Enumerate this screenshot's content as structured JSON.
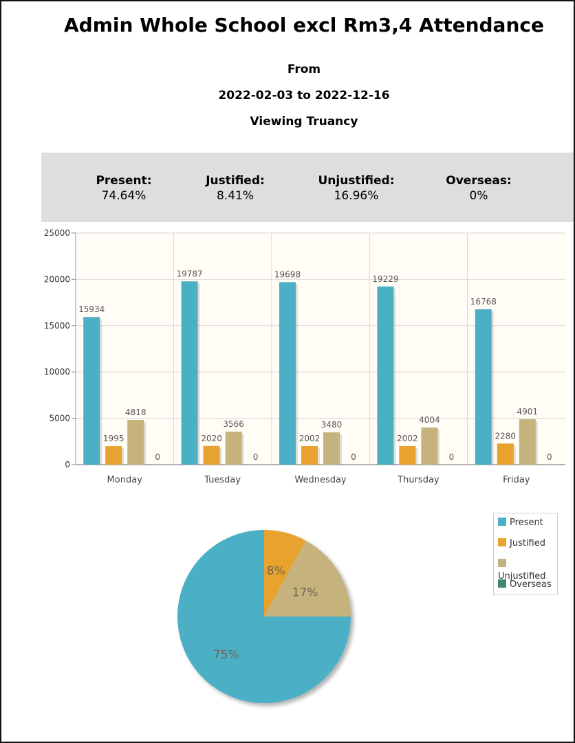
{
  "header": {
    "title": "Admin Whole School excl Rm3,4 Attendance",
    "from_label": "From",
    "date_range": "2022-02-03 to 2022-12-16",
    "view_label": "Viewing Truancy"
  },
  "summary": [
    {
      "label": "Present:",
      "value": "74.64%"
    },
    {
      "label": "Justified:",
      "value": "8.41%"
    },
    {
      "label": "Unjustified:",
      "value": "16.96%"
    },
    {
      "label": "Overseas:",
      "value": "0%"
    }
  ],
  "colors": {
    "present": "#4bb0c6",
    "justified": "#e8a22f",
    "unjustified": "#c6b27c",
    "overseas": "#3f8a6a",
    "plot_bg": "#fffdf5",
    "grid": "#d8d8d8"
  },
  "chart_data": [
    {
      "type": "bar",
      "categories": [
        "Monday",
        "Tuesday",
        "Wednesday",
        "Thursday",
        "Friday"
      ],
      "series": [
        {
          "name": "Present",
          "values": [
            15934,
            19787,
            19698,
            19229,
            16768
          ]
        },
        {
          "name": "Justified",
          "values": [
            1995,
            2020,
            2002,
            2002,
            2280
          ]
        },
        {
          "name": "Unjustified",
          "values": [
            4818,
            3566,
            3480,
            4004,
            4901
          ]
        },
        {
          "name": "Overseas",
          "values": [
            0,
            0,
            0,
            0,
            0
          ]
        }
      ],
      "ylim": [
        0,
        25000
      ],
      "yticks": [
        0,
        5000,
        10000,
        15000,
        20000,
        25000
      ],
      "grid": true
    },
    {
      "type": "pie",
      "slices": [
        {
          "name": "Present",
          "value": 75,
          "label": "75%"
        },
        {
          "name": "Justified",
          "value": 8,
          "label": "8%"
        },
        {
          "name": "Unjustified",
          "value": 17,
          "label": "17%"
        },
        {
          "name": "Overseas",
          "value": 0,
          "label": ""
        }
      ],
      "legend_position": "right"
    }
  ],
  "legend": [
    {
      "label": "Present",
      "color_key": "present"
    },
    {
      "label": "Justified",
      "color_key": "justified"
    },
    {
      "label": "Unjustified",
      "color_key": "unjustified"
    },
    {
      "label": "Overseas",
      "color_key": "overseas"
    }
  ]
}
